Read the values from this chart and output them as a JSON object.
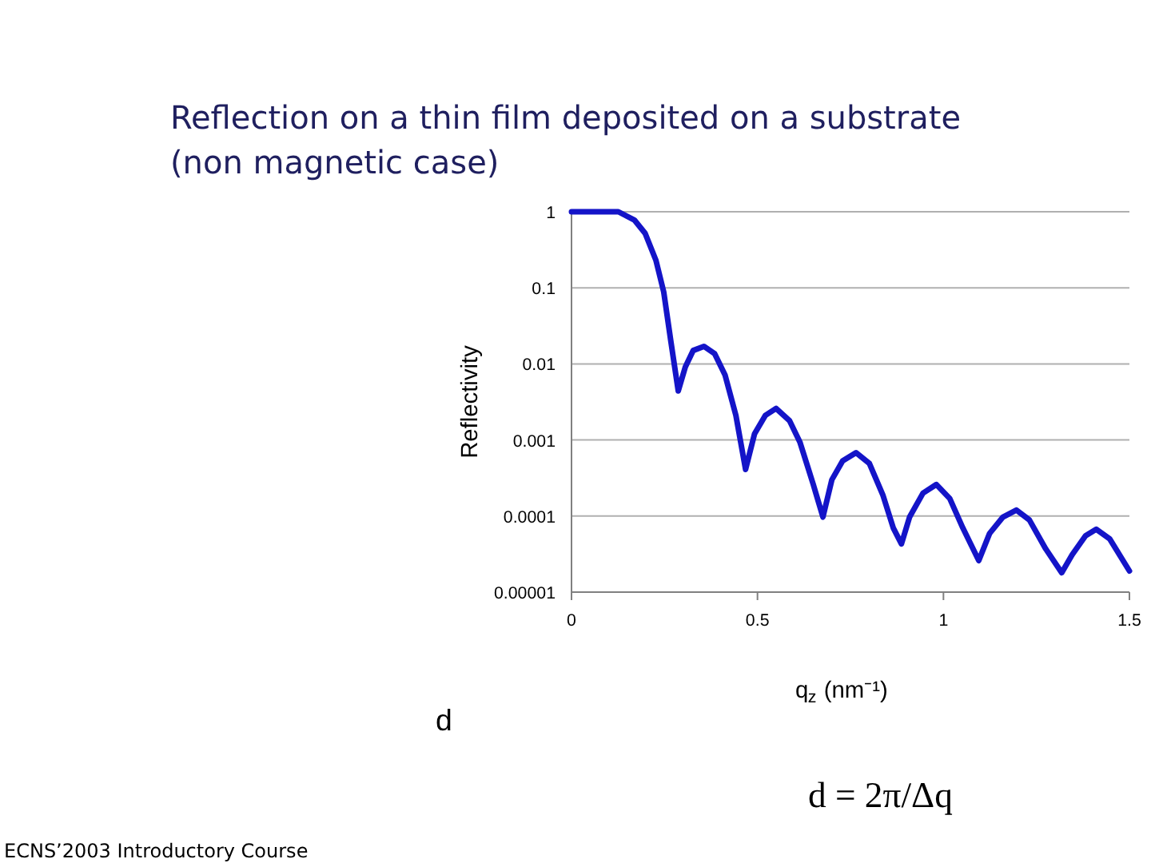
{
  "chart_data": {
    "type": "line",
    "title": "Reflection on a thin film deposited on a substrate (non magnetic case)",
    "xlabel": "q$_{z}$ (nm⁻¹)",
    "ylabel": "Reflectivity",
    "annotations": [
      "d",
      "d = 2π/Δq",
      "ECNS’2003 Introductory Course"
    ],
    "x": [
      0,
      0.126,
      0.169,
      0.198,
      0.227,
      0.248,
      0.267,
      0.287,
      0.306,
      0.327,
      0.356,
      0.385,
      0.413,
      0.442,
      0.468,
      0.492,
      0.521,
      0.55,
      0.586,
      0.614,
      0.65,
      0.676,
      0.7,
      0.729,
      0.765,
      0.801,
      0.837,
      0.865,
      0.887,
      0.909,
      0.945,
      0.981,
      1.017,
      1.052,
      1.095,
      1.124,
      1.16,
      1.196,
      1.231,
      1.275,
      1.318,
      1.346,
      1.382,
      1.411,
      1.447,
      1.5
    ],
    "series": [
      {
        "color": "#1414c8",
        "values": [
          1,
          1,
          0.78,
          0.52,
          0.23,
          0.088,
          0.02,
          0.0044,
          0.0091,
          0.015,
          0.017,
          0.0136,
          0.0071,
          0.0021,
          0.00041,
          0.0012,
          0.0021,
          0.0026,
          0.0018,
          0.00094,
          0.00026,
          9.7e-05,
          0.0003,
          0.00053,
          0.00068,
          0.00049,
          0.00019,
          7e-05,
          4.3e-05,
          9.7e-05,
          0.0002,
          0.00026,
          0.00017,
          7e-05,
          2.6e-05,
          5.9e-05,
          9.7e-05,
          0.00012,
          8.9e-05,
          3.7e-05,
          1.8e-05,
          3.1e-05,
          5.5e-05,
          6.7e-05,
          5e-05,
          1.9e-05
        ]
      }
    ],
    "xlim": [
      0,
      1.5
    ],
    "xticks": [
      0,
      0.5,
      1,
      1.5
    ],
    "ylim": [
      1e-05,
      1
    ],
    "log": true,
    "yticks": [
      {
        "value": 1e-05,
        "label": "0.00001"
      },
      {
        "value": 0.0001,
        "label": "0.0001"
      },
      {
        "value": 0.001,
        "label": "0.001"
      },
      {
        "value": 0.01,
        "label": "0.01"
      },
      {
        "value": 0.1,
        "label": "0.1"
      },
      {
        "value": 1,
        "label": "1"
      }
    ],
    "grid": "y",
    "marker": "none",
    "line_style": "solid"
  }
}
